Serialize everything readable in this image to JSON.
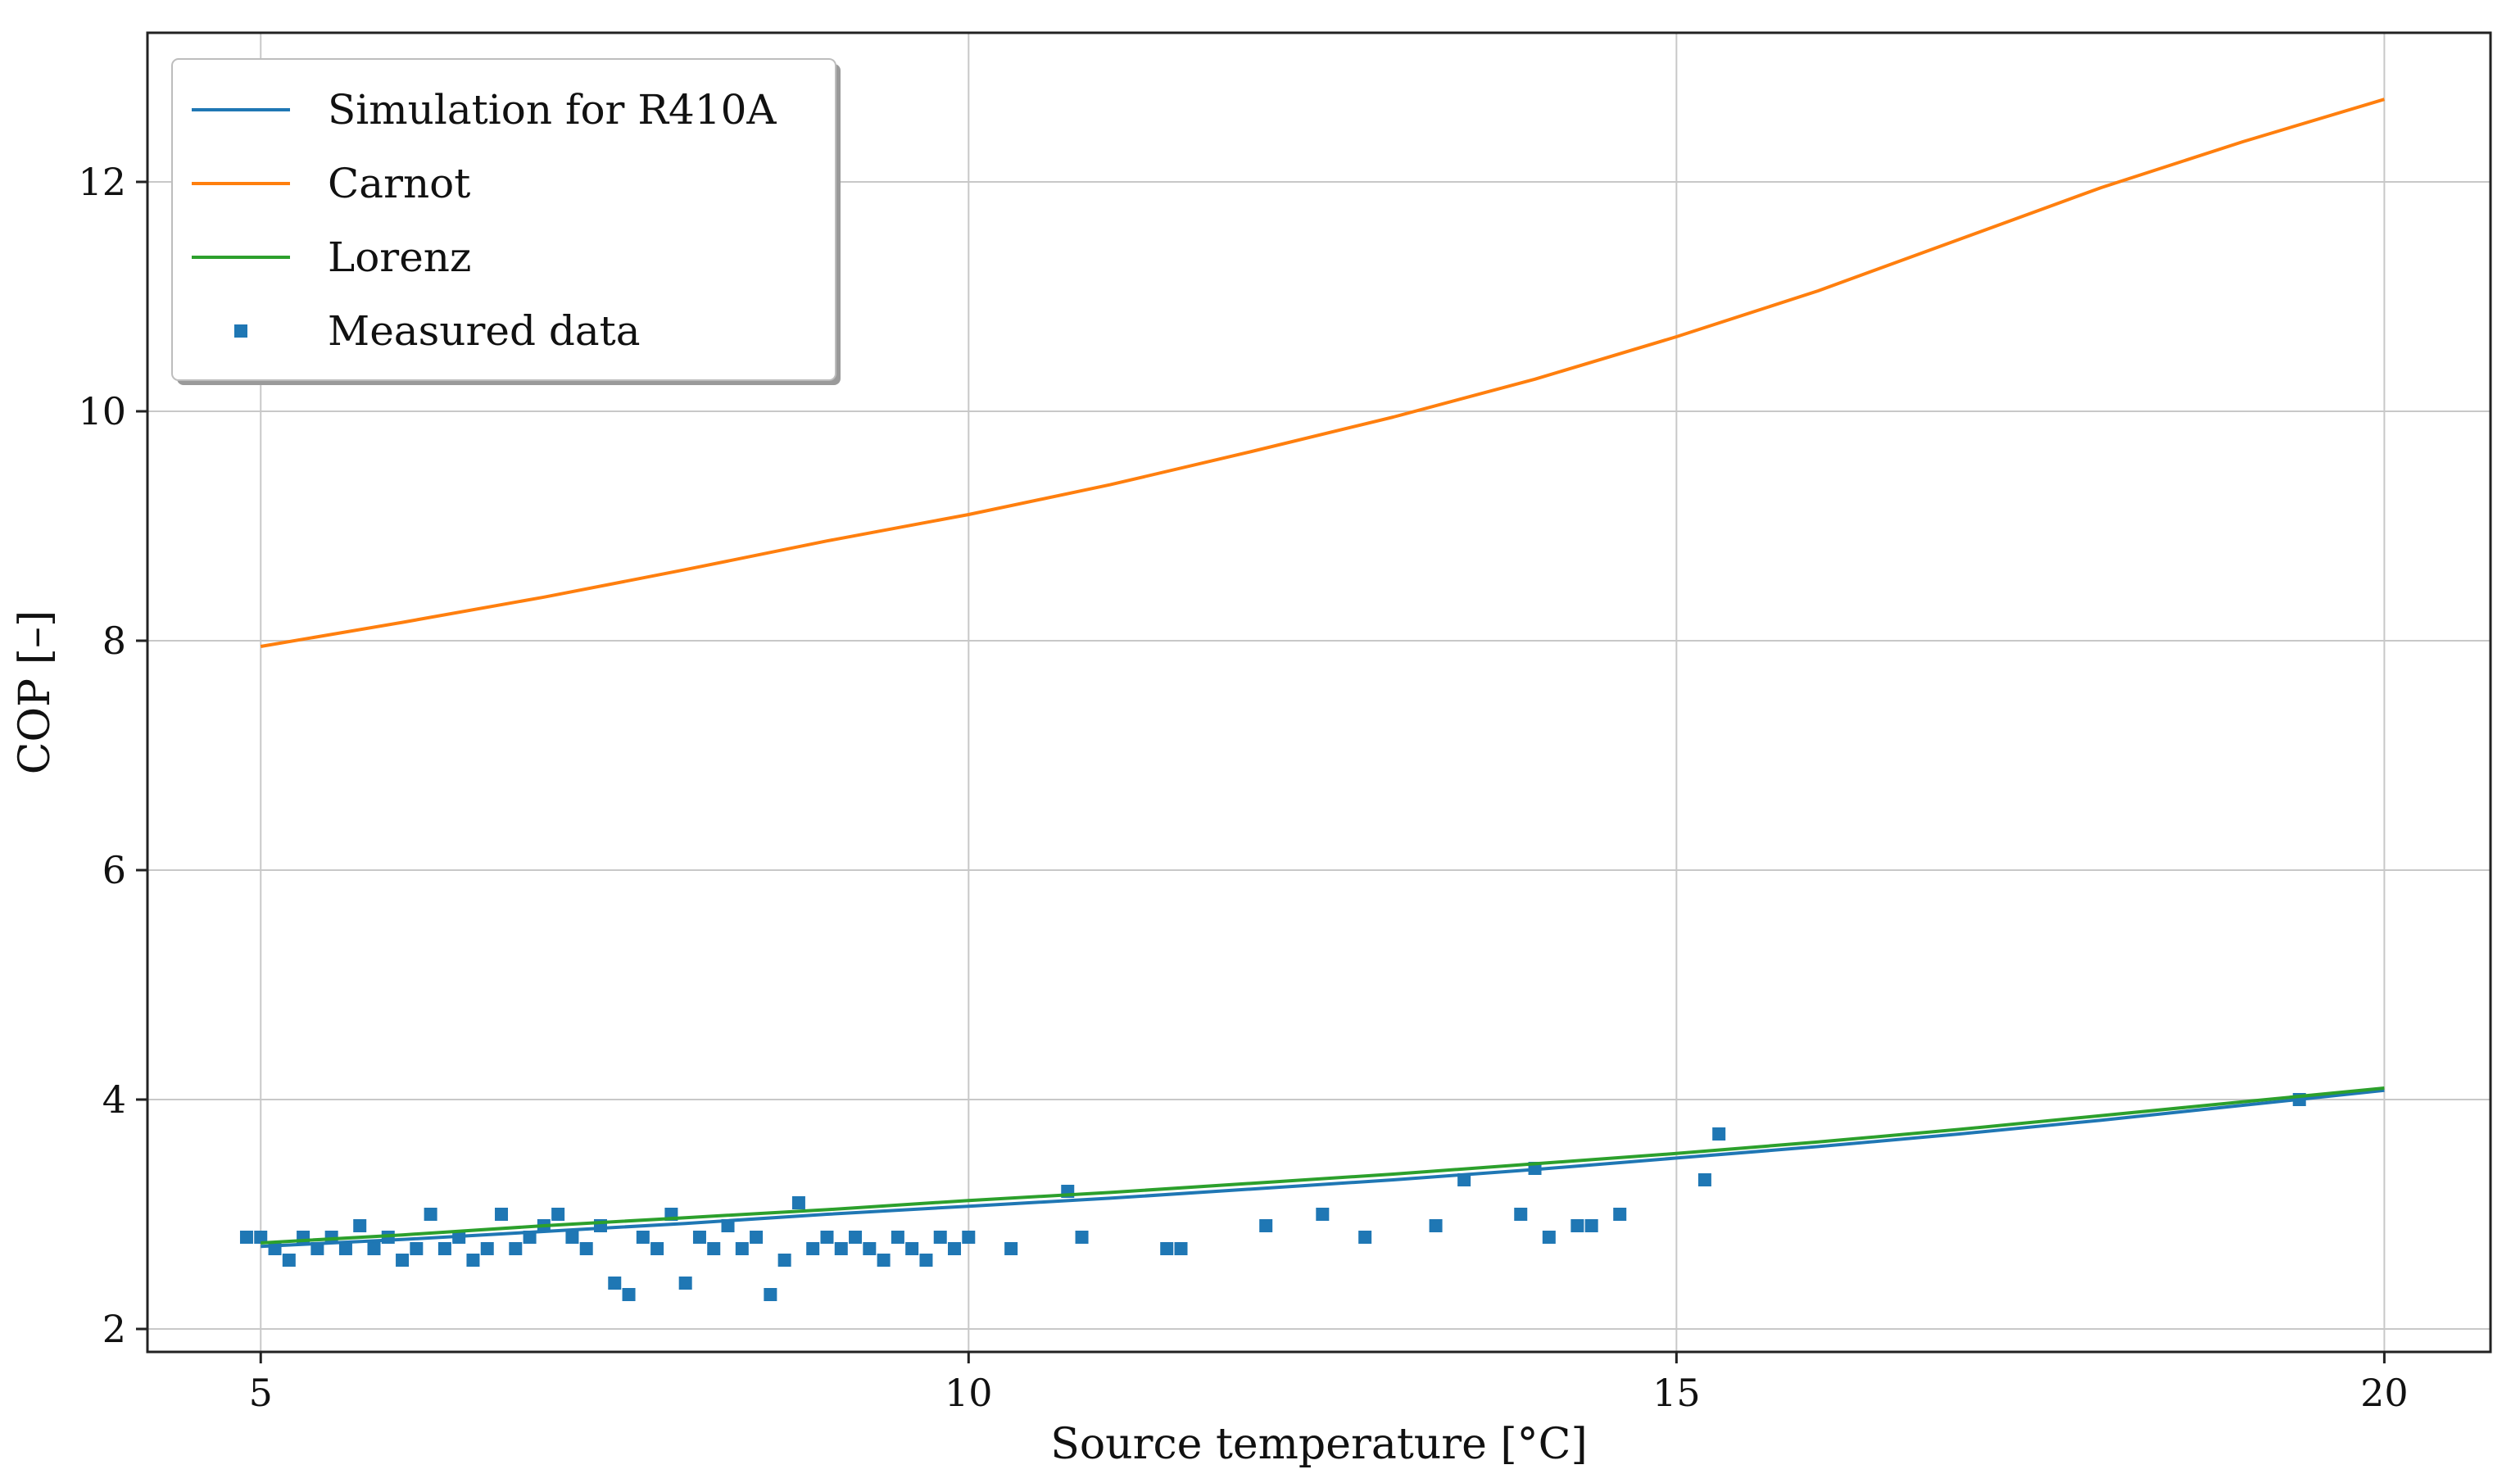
{
  "chart_data": {
    "type": "line",
    "title": "",
    "xlabel": "Source temperature [°C]",
    "ylabel": "COP [–]",
    "xlim": [
      4.2,
      20.75
    ],
    "ylim": [
      1.8,
      13.3
    ],
    "xticks": [
      5,
      10,
      15,
      20
    ],
    "yticks": [
      2,
      4,
      6,
      8,
      10,
      12
    ],
    "grid": true,
    "legend_position": "top-left",
    "colors": {
      "simulation": "#1f77b4",
      "carnot": "#ff7f0e",
      "lorenz": "#2ca02c",
      "measured": "#1f77b4"
    },
    "series": [
      {
        "name": "Simulation for R410A",
        "kind": "line",
        "x": [
          5,
          6,
          7,
          8,
          9,
          10,
          11,
          12,
          13,
          14,
          15,
          16,
          17,
          18,
          19,
          20
        ],
        "y": [
          2.72,
          2.78,
          2.85,
          2.92,
          3.0,
          3.07,
          3.14,
          3.22,
          3.3,
          3.39,
          3.49,
          3.59,
          3.7,
          3.82,
          3.95,
          4.08
        ]
      },
      {
        "name": "Carnot",
        "kind": "line",
        "x": [
          5,
          6,
          7,
          8,
          9,
          10,
          11,
          12,
          13,
          14,
          15,
          16,
          17,
          18,
          19,
          20
        ],
        "y": [
          7.95,
          8.16,
          8.38,
          8.62,
          8.87,
          9.1,
          9.36,
          9.65,
          9.95,
          10.28,
          10.65,
          11.05,
          11.5,
          11.95,
          12.35,
          12.72
        ]
      },
      {
        "name": "Lorenz",
        "kind": "line",
        "x": [
          5,
          6,
          7,
          8,
          9,
          10,
          11,
          12,
          13,
          14,
          15,
          16,
          17,
          18,
          19,
          20
        ],
        "y": [
          2.75,
          2.82,
          2.9,
          2.97,
          3.04,
          3.12,
          3.19,
          3.27,
          3.35,
          3.44,
          3.53,
          3.63,
          3.74,
          3.86,
          3.98,
          4.1
        ]
      },
      {
        "name": "Measured data",
        "kind": "scatter",
        "points": [
          [
            4.9,
            2.8
          ],
          [
            5.0,
            2.8
          ],
          [
            5.1,
            2.7
          ],
          [
            5.2,
            2.6
          ],
          [
            5.3,
            2.8
          ],
          [
            5.4,
            2.7
          ],
          [
            5.5,
            2.8
          ],
          [
            5.6,
            2.7
          ],
          [
            5.7,
            2.9
          ],
          [
            5.8,
            2.7
          ],
          [
            5.9,
            2.8
          ],
          [
            6.0,
            2.6
          ],
          [
            6.1,
            2.7
          ],
          [
            6.2,
            3.0
          ],
          [
            6.3,
            2.7
          ],
          [
            6.4,
            2.8
          ],
          [
            6.5,
            2.6
          ],
          [
            6.6,
            2.7
          ],
          [
            6.7,
            3.0
          ],
          [
            6.8,
            2.7
          ],
          [
            6.9,
            2.8
          ],
          [
            7.0,
            2.9
          ],
          [
            7.1,
            3.0
          ],
          [
            7.2,
            2.8
          ],
          [
            7.3,
            2.7
          ],
          [
            7.4,
            2.9
          ],
          [
            7.5,
            2.4
          ],
          [
            7.6,
            2.3
          ],
          [
            7.7,
            2.8
          ],
          [
            7.8,
            2.7
          ],
          [
            7.9,
            3.0
          ],
          [
            8.0,
            2.4
          ],
          [
            8.1,
            2.8
          ],
          [
            8.2,
            2.7
          ],
          [
            8.3,
            2.9
          ],
          [
            8.4,
            2.7
          ],
          [
            8.5,
            2.8
          ],
          [
            8.6,
            2.3
          ],
          [
            8.7,
            2.6
          ],
          [
            8.8,
            3.1
          ],
          [
            8.9,
            2.7
          ],
          [
            9.0,
            2.8
          ],
          [
            9.1,
            2.7
          ],
          [
            9.2,
            2.8
          ],
          [
            9.3,
            2.7
          ],
          [
            9.4,
            2.6
          ],
          [
            9.5,
            2.8
          ],
          [
            9.6,
            2.7
          ],
          [
            9.7,
            2.6
          ],
          [
            9.8,
            2.8
          ],
          [
            9.9,
            2.7
          ],
          [
            10.0,
            2.8
          ],
          [
            10.3,
            2.7
          ],
          [
            10.7,
            3.2
          ],
          [
            10.8,
            2.8
          ],
          [
            11.4,
            2.7
          ],
          [
            11.5,
            2.7
          ],
          [
            12.1,
            2.9
          ],
          [
            12.5,
            3.0
          ],
          [
            12.8,
            2.8
          ],
          [
            13.3,
            2.9
          ],
          [
            13.5,
            3.3
          ],
          [
            13.9,
            3.0
          ],
          [
            14.0,
            3.4
          ],
          [
            14.1,
            2.8
          ],
          [
            14.3,
            2.9
          ],
          [
            14.4,
            2.9
          ],
          [
            14.6,
            3.0
          ],
          [
            15.2,
            3.3
          ],
          [
            15.3,
            3.7
          ],
          [
            19.4,
            4.0
          ]
        ]
      }
    ]
  }
}
